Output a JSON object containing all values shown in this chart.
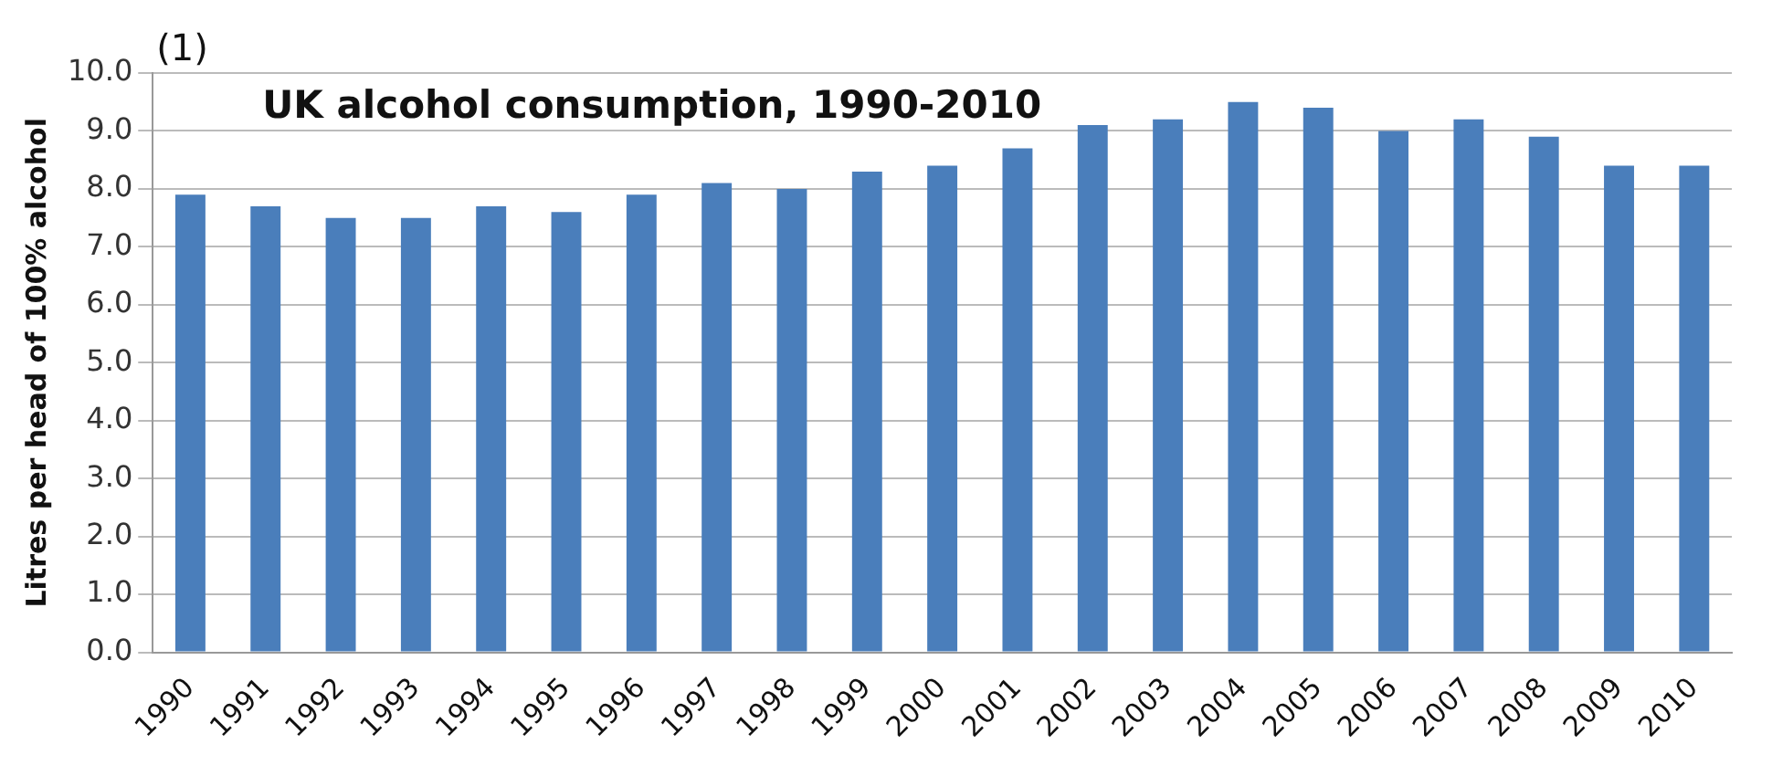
{
  "chart_data": {
    "type": "bar",
    "title": "UK alcohol consumption, 1990-2010",
    "ylabel": "Litres per head of 100% alcohol",
    "annotations": [
      "(1)"
    ],
    "categories": [
      "1990",
      "1991",
      "1992",
      "1993",
      "1994",
      "1995",
      "1996",
      "1997",
      "1998",
      "1999",
      "2000",
      "2001",
      "2002",
      "2003",
      "2004",
      "2005",
      "2006",
      "2007",
      "2008",
      "2009",
      "2010"
    ],
    "values": [
      7.9,
      7.7,
      7.5,
      7.5,
      7.7,
      7.6,
      7.9,
      8.1,
      8.0,
      8.3,
      8.4,
      8.7,
      9.1,
      9.2,
      9.5,
      9.4,
      9.0,
      9.2,
      8.9,
      8.4,
      8.4
    ],
    "color": "#4a7ebb",
    "ylim": [
      0,
      10
    ],
    "yticks": [
      {
        "value": 0,
        "label": "0.0"
      },
      {
        "value": 1,
        "label": "1.0"
      },
      {
        "value": 2,
        "label": "2.0"
      },
      {
        "value": 3,
        "label": "3.0"
      },
      {
        "value": 4,
        "label": "4.0"
      },
      {
        "value": 5,
        "label": "5.0"
      },
      {
        "value": 6,
        "label": "6.0"
      },
      {
        "value": 7,
        "label": "7.0"
      },
      {
        "value": 8,
        "label": "8.0"
      },
      {
        "value": 9,
        "label": "9.0"
      },
      {
        "value": 10,
        "label": "10.0"
      }
    ],
    "grid": "y"
  }
}
